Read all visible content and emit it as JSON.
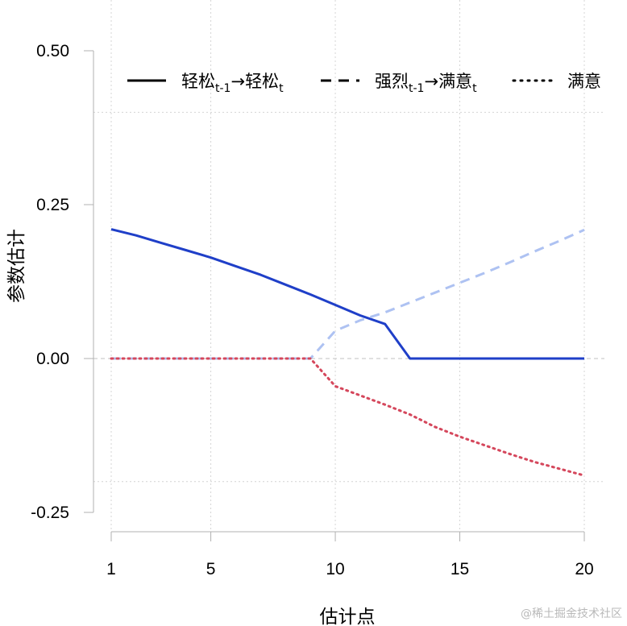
{
  "chart_data": {
    "type": "line",
    "xlabel": "估计点",
    "ylabel": "参数估计",
    "xlim": [
      1,
      20
    ],
    "ylim": [
      -0.25,
      0.5
    ],
    "x_ticks": [
      "1",
      "5",
      "10",
      "15",
      "20"
    ],
    "y_ticks": [
      "-0.25",
      "0.00",
      "0.25",
      "0.50"
    ],
    "grid": true,
    "legend_position": "top",
    "colors": {
      "light": "#1f3fc8",
      "strong": "#aec2f2",
      "satisfied": "#d5475c"
    },
    "series": [
      {
        "name": "轻松",
        "name_sub_a": "t-1",
        "name_mid": "轻松",
        "name_sub_b": "t",
        "style": "solid",
        "color": "#1f3fc8",
        "x": [
          1,
          2,
          3,
          4,
          5,
          6,
          7,
          8,
          9,
          10,
          11,
          12,
          13,
          14,
          15,
          16,
          17,
          18,
          19,
          20
        ],
        "values": [
          0.21,
          0.2,
          0.188,
          0.176,
          0.164,
          0.15,
          0.136,
          0.12,
          0.104,
          0.087,
          0.07,
          0.056,
          0.0,
          0.0,
          0.0,
          0.0,
          0.0,
          0.0,
          0.0,
          0.0
        ]
      },
      {
        "name": "强烈",
        "name_sub_a": "t-1",
        "name_mid": "满意",
        "name_sub_b": "t",
        "style": "dashed",
        "color": "#aec2f2",
        "x": [
          1,
          2,
          3,
          4,
          5,
          6,
          7,
          8,
          9,
          10,
          11,
          12,
          13,
          14,
          15,
          16,
          17,
          18,
          19,
          20
        ],
        "values": [
          0.0,
          0.0,
          0.0,
          0.0,
          0.0,
          0.0,
          0.0,
          0.0,
          0.0,
          0.045,
          0.062,
          0.075,
          0.091,
          0.107,
          0.123,
          0.139,
          0.156,
          0.174,
          0.191,
          0.209
        ]
      },
      {
        "name": "满意",
        "style": "dotted",
        "color": "#d5475c",
        "x": [
          1,
          2,
          3,
          4,
          5,
          6,
          7,
          8,
          9,
          10,
          11,
          12,
          13,
          14,
          15,
          16,
          17,
          18,
          19,
          20
        ],
        "values": [
          0.0,
          0.0,
          0.0,
          0.0,
          0.0,
          0.0,
          0.0,
          0.0,
          0.0,
          -0.045,
          -0.06,
          -0.075,
          -0.091,
          -0.111,
          -0.127,
          -0.141,
          -0.155,
          -0.168,
          -0.179,
          -0.19
        ]
      }
    ],
    "legend_arrow": "→"
  },
  "watermark": "@稀土掘金技术社区"
}
